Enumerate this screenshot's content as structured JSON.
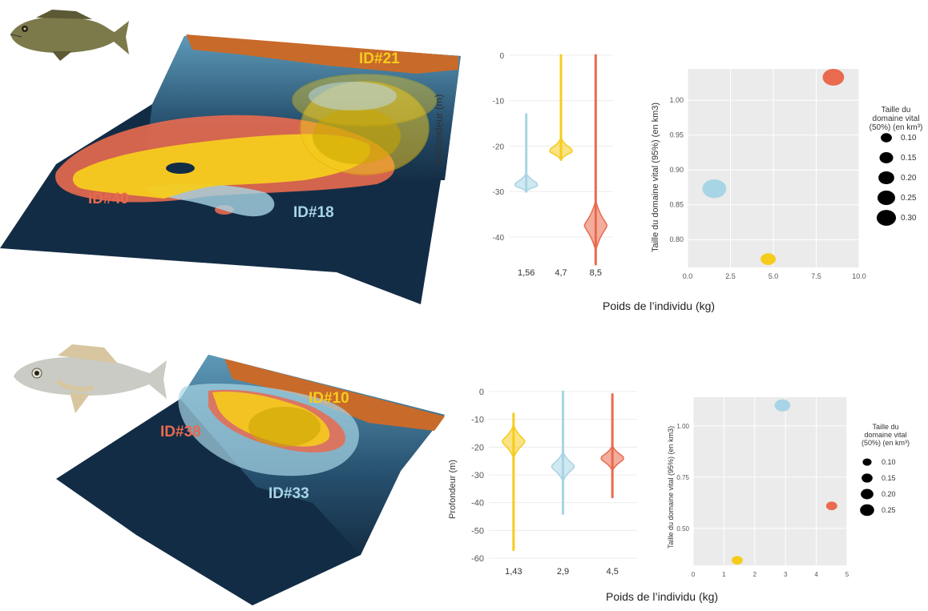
{
  "colors": {
    "id_blue": "#a8d5e5",
    "id_yellow": "#f5cc1e",
    "id_red": "#e96a4f",
    "cliff": "#c86a2a",
    "sea_dark": "#132c45",
    "sea_mid": "#2d5f7d",
    "panel_bg": "#ebebeb"
  },
  "top": {
    "fish_icon": "grouper-fish-icon",
    "labels": {
      "id21": "ID#21",
      "id40": "ID#40",
      "id18": "ID#18"
    },
    "depth_ylabel": "Profondeur (m)",
    "scatter_ylabel": "Taille du domaine vital (95%) (en km3)",
    "xlabel": "Poids de l’individu (kg)",
    "legend_title_1": "Taille du",
    "legend_title_2": "domaine vital",
    "legend_title_3": "(50%) (en km³)",
    "legend_labels": [
      "0.10",
      "0.15",
      "0.20",
      "0.25",
      "0.30"
    ]
  },
  "bottom": {
    "fish_icon": "meagre-fish-icon",
    "labels": {
      "id10": "ID#10",
      "id38": "ID#38",
      "id33": "ID#33"
    },
    "depth_ylabel": "Profondeur (m)",
    "scatter_ylabel": "Taille du domaine vital (95%) (en km3)",
    "xlabel": "Poids de l’individu (kg)",
    "legend_title_1": "Taille du",
    "legend_title_2": "domaine vital",
    "legend_title_3": "(50%) (en km³)",
    "legend_labels": [
      "0.10",
      "0.15",
      "0.20",
      "0.25"
    ]
  },
  "chart_data": [
    {
      "type": "violin",
      "ylabel": "Profondeur (m)",
      "categories": [
        "1,56",
        "4,7",
        "8,5"
      ],
      "series_colors": [
        "#a8d5e5",
        "#f5cc1e",
        "#e96a4f"
      ],
      "yticks": [
        0,
        -10,
        -20,
        -30,
        -40
      ],
      "ylim": [
        -46,
        0
      ],
      "ranges": [
        [
          -30,
          -13
        ],
        [
          -23,
          0
        ],
        [
          -46,
          0
        ]
      ],
      "modes": [
        -28.5,
        -21,
        -37.5
      ]
    },
    {
      "type": "scatter",
      "ylabel": "Taille du domaine vital (95%) (en km3)",
      "xticks": [
        "0.0",
        "2.5",
        "5.0",
        "7.5",
        "10.0"
      ],
      "yticks": [
        "0.80",
        "0.85",
        "0.90",
        "0.95",
        "1.00"
      ],
      "xlim": [
        0,
        10
      ],
      "ylim": [
        0.76,
        1.045
      ],
      "points": [
        {
          "x": 1.56,
          "y": 0.873,
          "size": 0.25,
          "color": "#a8d5e5"
        },
        {
          "x": 4.7,
          "y": 0.772,
          "size": 0.1,
          "color": "#f5cc1e"
        },
        {
          "x": 8.5,
          "y": 1.033,
          "size": 0.2,
          "color": "#e96a4f"
        }
      ],
      "legend_sizes": [
        0.1,
        0.15,
        0.2,
        0.25,
        0.3
      ]
    },
    {
      "type": "violin",
      "ylabel": "Profondeur (m)",
      "categories": [
        "1,43",
        "2,9",
        "4,5"
      ],
      "series_colors": [
        "#f5cc1e",
        "#a8d5e5",
        "#e96a4f"
      ],
      "yticks": [
        0,
        -10,
        -20,
        -30,
        -40,
        -50,
        -60
      ],
      "ylim": [
        -60,
        0
      ],
      "ranges": [
        [
          -57,
          -8
        ],
        [
          -44,
          0
        ],
        [
          -38,
          -1
        ]
      ],
      "modes": [
        -18,
        -27,
        -24
      ]
    },
    {
      "type": "scatter",
      "ylabel": "Taille du domaine vital (95%) (en km3)",
      "xticks": [
        "0",
        "1",
        "2",
        "3",
        "4",
        "5"
      ],
      "yticks": [
        "0.50",
        "0.75",
        "1.00"
      ],
      "xlim": [
        0,
        5
      ],
      "ylim": [
        0.32,
        1.14
      ],
      "points": [
        {
          "x": 1.43,
          "y": 0.345,
          "size": 0.1,
          "color": "#f5cc1e"
        },
        {
          "x": 2.9,
          "y": 1.1,
          "size": 0.2,
          "color": "#a8d5e5"
        },
        {
          "x": 4.5,
          "y": 0.61,
          "size": 0.1,
          "color": "#e96a4f"
        }
      ],
      "legend_sizes": [
        0.1,
        0.15,
        0.2,
        0.25
      ]
    }
  ]
}
